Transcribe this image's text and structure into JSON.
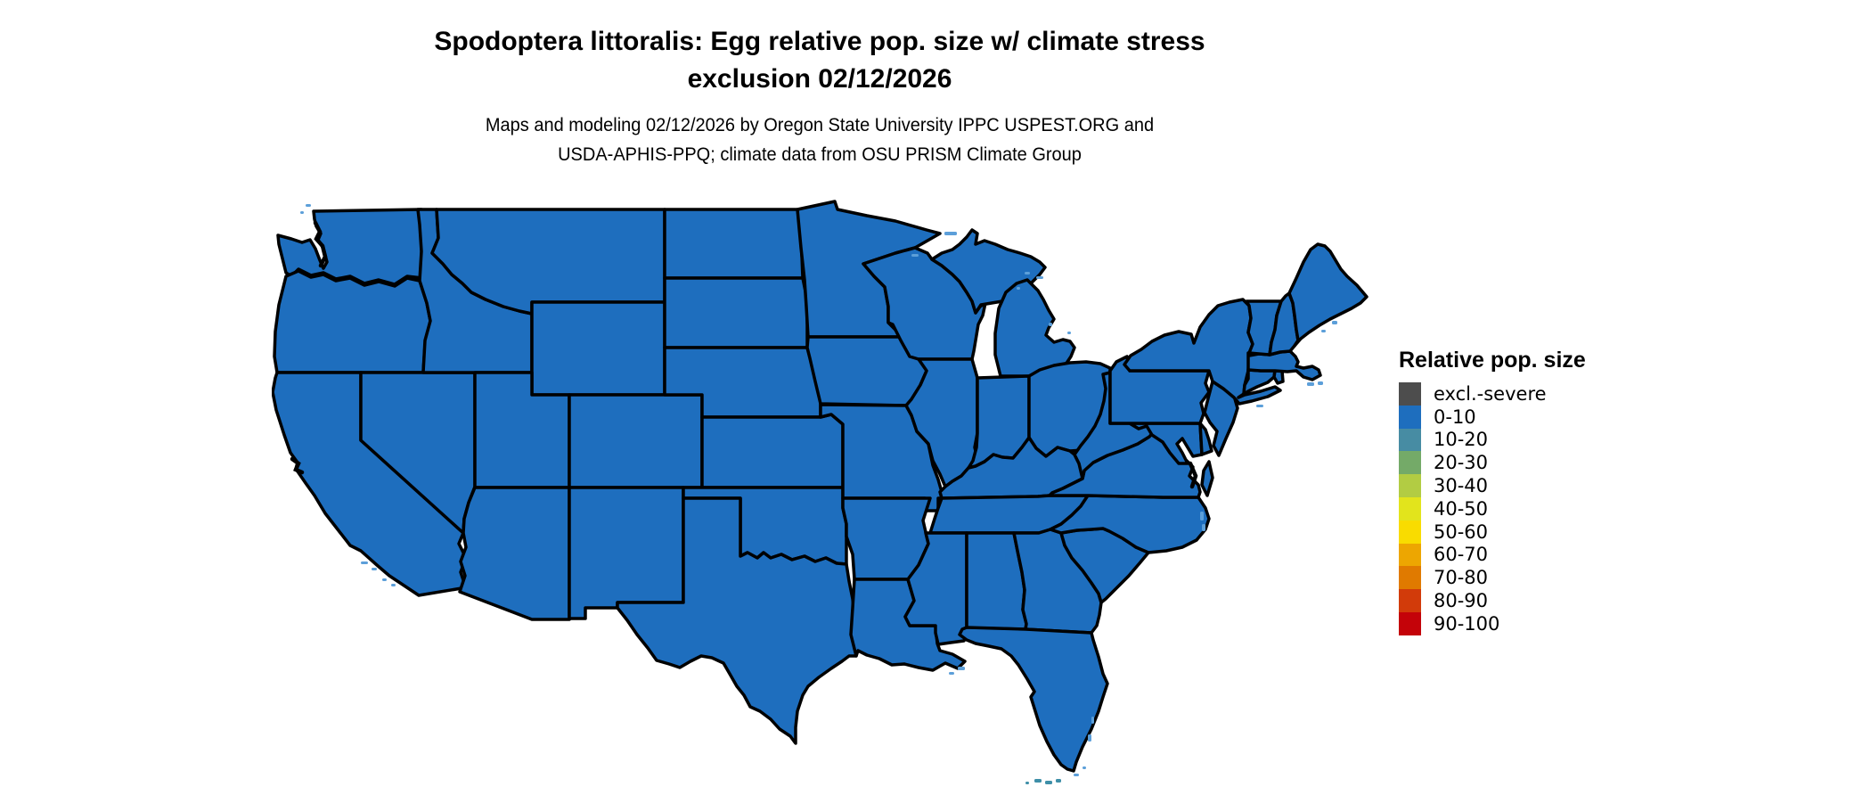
{
  "figure": {
    "background": "#FFFFFF"
  },
  "title": {
    "line1": "Spodoptera littoralis: Egg relative pop. size w/ climate stress",
    "line2": "exclusion 02/12/2026"
  },
  "subtitle": {
    "line1": "Maps and modeling 02/12/2026 by Oregon State University IPPC USPEST.ORG and",
    "line2": "USDA-APHIS-PPQ; climate data from OSU PRISM Climate Group"
  },
  "legend": {
    "title": "Relative pop. size",
    "items": [
      {
        "label": "excl.-severe",
        "color": "#4D4D4D"
      },
      {
        "label": "0-10",
        "color": "#1E6EBE"
      },
      {
        "label": "10-20",
        "color": "#478CA3"
      },
      {
        "label": "20-30",
        "color": "#74AA68"
      },
      {
        "label": "30-40",
        "color": "#B2CC43"
      },
      {
        "label": "40-50",
        "color": "#E2E41C"
      },
      {
        "label": "50-60",
        "color": "#F9DC00"
      },
      {
        "label": "60-70",
        "color": "#EDA601"
      },
      {
        "label": "70-80",
        "color": "#E07A00"
      },
      {
        "label": "80-90",
        "color": "#D23B0A"
      },
      {
        "label": "90-100",
        "color": "#C40309"
      }
    ]
  },
  "map": {
    "state_fill_category": "0-10",
    "state_fill": "#1E6EBE",
    "border_color": "#000000",
    "water_fringe_color": "#5C9FD9",
    "florida_keys_color": "#3E8FA8"
  },
  "chart_data": {
    "type": "heatmap",
    "subtype": "choropleth-us-states",
    "title": "Spodoptera littoralis: Egg relative pop. size w/ climate stress exclusion 02/12/2026",
    "legend_title": "Relative pop. size",
    "classes": [
      "excl.-severe",
      "0-10",
      "10-20",
      "20-30",
      "30-40",
      "40-50",
      "50-60",
      "60-70",
      "70-80",
      "80-90",
      "90-100"
    ],
    "class_colors": [
      "#4D4D4D",
      "#1E6EBE",
      "#478CA3",
      "#74AA68",
      "#B2CC43",
      "#E2E41C",
      "#F9DC00",
      "#EDA601",
      "#E07A00",
      "#D23B0A",
      "#C40309"
    ],
    "states_class": "all contiguous U.S. states rendered in class 0-10"
  }
}
